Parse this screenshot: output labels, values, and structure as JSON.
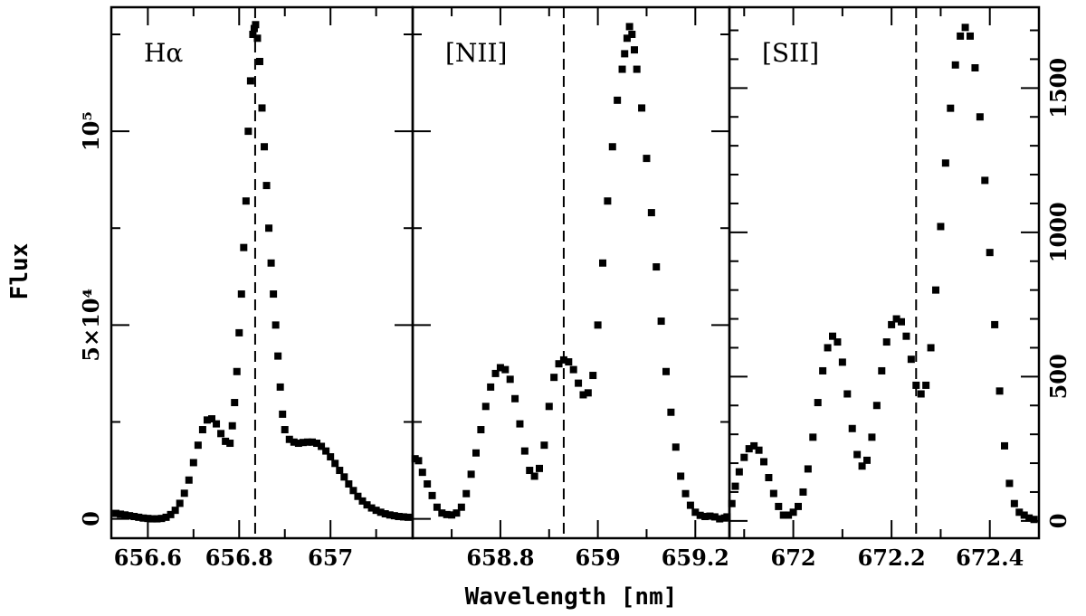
{
  "chart_data": {
    "type": "scatter",
    "ylabel": "Flux",
    "xlabel": "Wavelength [nm]",
    "panels": [
      {
        "id": "halpha",
        "label": "Hα",
        "xlim": [
          656.52,
          657.18
        ],
        "ylim": [
          -5000,
          132000
        ],
        "ref_line_x": 656.835,
        "y_ticks_major": [
          0,
          50000,
          100000
        ],
        "y_ticks_minor": [
          25000,
          75000,
          125000
        ],
        "y_tick_labels": [
          "0",
          "5×10⁴",
          "10⁵"
        ],
        "x_ticks_major": [
          656.6,
          656.8,
          657.0
        ],
        "x_ticks_minor": [
          656.7,
          656.9,
          657.1
        ],
        "x_tick_labels": [
          "656.6",
          "656.8",
          "657"
        ],
        "points": [
          [
            656.53,
            1400
          ],
          [
            656.54,
            1200
          ],
          [
            656.55,
            1000
          ],
          [
            656.56,
            800
          ],
          [
            656.57,
            600
          ],
          [
            656.58,
            400
          ],
          [
            656.59,
            200
          ],
          [
            656.6,
            100
          ],
          [
            656.61,
            0
          ],
          [
            656.62,
            0
          ],
          [
            656.63,
            100
          ],
          [
            656.64,
            400
          ],
          [
            656.65,
            1100
          ],
          [
            656.66,
            2200
          ],
          [
            656.67,
            4000
          ],
          [
            656.68,
            6600
          ],
          [
            656.69,
            10000
          ],
          [
            656.7,
            14500
          ],
          [
            656.71,
            19000
          ],
          [
            656.72,
            23000
          ],
          [
            656.73,
            25500
          ],
          [
            656.74,
            25800
          ],
          [
            656.75,
            24500
          ],
          [
            656.76,
            22000
          ],
          [
            656.77,
            20000
          ],
          [
            656.78,
            19500
          ],
          [
            656.785,
            24000
          ],
          [
            656.79,
            30000
          ],
          [
            656.795,
            38000
          ],
          [
            656.8,
            48000
          ],
          [
            656.805,
            58000
          ],
          [
            656.81,
            70000
          ],
          [
            656.815,
            82000
          ],
          [
            656.82,
            100000
          ],
          [
            656.825,
            113000
          ],
          [
            656.83,
            125000
          ],
          [
            656.833,
            126500
          ],
          [
            656.836,
            127500
          ],
          [
            656.84,
            124000
          ],
          [
            656.845,
            118000
          ],
          [
            656.85,
            106000
          ],
          [
            656.855,
            96000
          ],
          [
            656.86,
            86000
          ],
          [
            656.865,
            75000
          ],
          [
            656.87,
            66000
          ],
          [
            656.875,
            58000
          ],
          [
            656.88,
            50000
          ],
          [
            656.885,
            42000
          ],
          [
            656.89,
            34000
          ],
          [
            656.895,
            27000
          ],
          [
            656.9,
            23000
          ],
          [
            656.91,
            20500
          ],
          [
            656.92,
            19800
          ],
          [
            656.93,
            19500
          ],
          [
            656.94,
            19700
          ],
          [
            656.95,
            19800
          ],
          [
            656.96,
            19800
          ],
          [
            656.97,
            19500
          ],
          [
            656.98,
            18700
          ],
          [
            656.99,
            17500
          ],
          [
            657.0,
            16000
          ],
          [
            657.01,
            14300
          ],
          [
            657.02,
            12500
          ],
          [
            657.03,
            10800
          ],
          [
            657.04,
            9000
          ],
          [
            657.05,
            7300
          ],
          [
            657.06,
            5800
          ],
          [
            657.07,
            4600
          ],
          [
            657.08,
            3600
          ],
          [
            657.09,
            2800
          ],
          [
            657.1,
            2200
          ],
          [
            657.11,
            1700
          ],
          [
            657.12,
            1300
          ],
          [
            657.13,
            1000
          ],
          [
            657.14,
            800
          ],
          [
            657.15,
            600
          ],
          [
            657.16,
            500
          ],
          [
            657.17,
            400
          ]
        ]
      },
      {
        "id": "nii",
        "label": "[NII]",
        "xlim": [
          658.62,
          659.27
        ],
        "ylim": [
          -5000,
          132000
        ],
        "ref_line_x": 658.93,
        "y_ticks_major": [
          0,
          50000,
          100000
        ],
        "y_ticks_minor": [
          25000,
          75000,
          125000
        ],
        "y_tick_labels": [],
        "x_ticks_major": [
          658.8,
          659.0,
          659.2
        ],
        "x_ticks_minor": [
          658.7,
          658.9,
          659.1
        ],
        "x_tick_labels": [
          "658.8",
          "659",
          "659.2"
        ],
        "points": [
          [
            658.625,
            15500
          ],
          [
            658.632,
            15000
          ],
          [
            658.64,
            12000
          ],
          [
            658.65,
            9000
          ],
          [
            658.66,
            6000
          ],
          [
            658.67,
            3000
          ],
          [
            658.68,
            1500
          ],
          [
            658.69,
            1100
          ],
          [
            658.7,
            1000
          ],
          [
            658.71,
            1500
          ],
          [
            658.72,
            3000
          ],
          [
            658.73,
            6500
          ],
          [
            658.74,
            11500
          ],
          [
            658.75,
            17000
          ],
          [
            658.76,
            23000
          ],
          [
            658.77,
            29000
          ],
          [
            658.78,
            34000
          ],
          [
            658.79,
            37500
          ],
          [
            658.8,
            39000
          ],
          [
            658.81,
            38500
          ],
          [
            658.82,
            36000
          ],
          [
            658.83,
            31000
          ],
          [
            658.84,
            24500
          ],
          [
            658.85,
            17500
          ],
          [
            658.86,
            12500
          ],
          [
            658.87,
            11000
          ],
          [
            658.88,
            13000
          ],
          [
            658.89,
            19000
          ],
          [
            658.9,
            29000
          ],
          [
            658.91,
            36500
          ],
          [
            658.92,
            40000
          ],
          [
            658.93,
            41000
          ],
          [
            658.94,
            40500
          ],
          [
            658.95,
            38500
          ],
          [
            658.96,
            35000
          ],
          [
            658.97,
            32000
          ],
          [
            658.98,
            32500
          ],
          [
            658.99,
            37000
          ],
          [
            659.0,
            50000
          ],
          [
            659.01,
            66000
          ],
          [
            659.02,
            82000
          ],
          [
            659.03,
            96000
          ],
          [
            659.04,
            108000
          ],
          [
            659.05,
            116000
          ],
          [
            659.055,
            120000
          ],
          [
            659.06,
            124000
          ],
          [
            659.065,
            127000
          ],
          [
            659.07,
            125000
          ],
          [
            659.075,
            121000
          ],
          [
            659.08,
            116000
          ],
          [
            659.09,
            106000
          ],
          [
            659.1,
            93000
          ],
          [
            659.11,
            79000
          ],
          [
            659.12,
            65000
          ],
          [
            659.13,
            51000
          ],
          [
            659.14,
            38000
          ],
          [
            659.15,
            27500
          ],
          [
            659.16,
            18500
          ],
          [
            659.17,
            11000
          ],
          [
            659.18,
            6500
          ],
          [
            659.19,
            3500
          ],
          [
            659.2,
            1700
          ],
          [
            659.21,
            900
          ],
          [
            659.22,
            600
          ],
          [
            659.23,
            700
          ],
          [
            659.24,
            500
          ],
          [
            659.25,
            0
          ],
          [
            659.26,
            200
          ],
          [
            659.265,
            500
          ]
        ]
      },
      {
        "id": "sii",
        "label": "[SII]",
        "xlim": [
          671.87,
          672.5
        ],
        "ylim": [
          -60,
          1780
        ],
        "ref_line_x": 672.25,
        "y_ticks_major": [
          0,
          500,
          1000,
          1500
        ],
        "y_ticks_minor": [
          100,
          200,
          300,
          400,
          600,
          700,
          800,
          900,
          1100,
          1200,
          1300,
          1400,
          1600,
          1700
        ],
        "y_tick_labels": [
          "0",
          "500",
          "1000",
          "1500"
        ],
        "x_ticks_major": [
          672.0,
          672.2,
          672.4
        ],
        "x_ticks_minor": [
          671.9,
          672.1,
          672.3,
          672.5
        ],
        "x_tick_labels": [
          "672",
          "672.2",
          "672.4"
        ],
        "points": [
          [
            671.875,
            60
          ],
          [
            671.882,
            120
          ],
          [
            671.89,
            170
          ],
          [
            671.9,
            220
          ],
          [
            671.91,
            250
          ],
          [
            671.92,
            260
          ],
          [
            671.93,
            245
          ],
          [
            671.94,
            205
          ],
          [
            671.95,
            150
          ],
          [
            671.96,
            95
          ],
          [
            671.97,
            50
          ],
          [
            671.98,
            20
          ],
          [
            671.99,
            20
          ],
          [
            672.0,
            30
          ],
          [
            672.01,
            50
          ],
          [
            672.02,
            100
          ],
          [
            672.03,
            180
          ],
          [
            672.04,
            290
          ],
          [
            672.05,
            410
          ],
          [
            672.06,
            520
          ],
          [
            672.07,
            600
          ],
          [
            672.08,
            640
          ],
          [
            672.09,
            620
          ],
          [
            672.1,
            550
          ],
          [
            672.11,
            440
          ],
          [
            672.12,
            320
          ],
          [
            672.13,
            230
          ],
          [
            672.14,
            190
          ],
          [
            672.15,
            210
          ],
          [
            672.16,
            290
          ],
          [
            672.17,
            400
          ],
          [
            672.18,
            520
          ],
          [
            672.19,
            620
          ],
          [
            672.2,
            680
          ],
          [
            672.21,
            700
          ],
          [
            672.22,
            690
          ],
          [
            672.23,
            640
          ],
          [
            672.24,
            560
          ],
          [
            672.25,
            470
          ],
          [
            672.26,
            440
          ],
          [
            672.27,
            470
          ],
          [
            672.28,
            600
          ],
          [
            672.29,
            800
          ],
          [
            672.3,
            1020
          ],
          [
            672.31,
            1240
          ],
          [
            672.32,
            1430
          ],
          [
            672.33,
            1580
          ],
          [
            672.34,
            1680
          ],
          [
            672.35,
            1710
          ],
          [
            672.36,
            1680
          ],
          [
            672.37,
            1570
          ],
          [
            672.38,
            1400
          ],
          [
            672.39,
            1180
          ],
          [
            672.4,
            930
          ],
          [
            672.41,
            680
          ],
          [
            672.42,
            450
          ],
          [
            672.43,
            260
          ],
          [
            672.44,
            130
          ],
          [
            672.45,
            60
          ],
          [
            672.46,
            30
          ],
          [
            672.47,
            20
          ],
          [
            672.48,
            10
          ],
          [
            672.49,
            5
          ]
        ]
      }
    ]
  }
}
